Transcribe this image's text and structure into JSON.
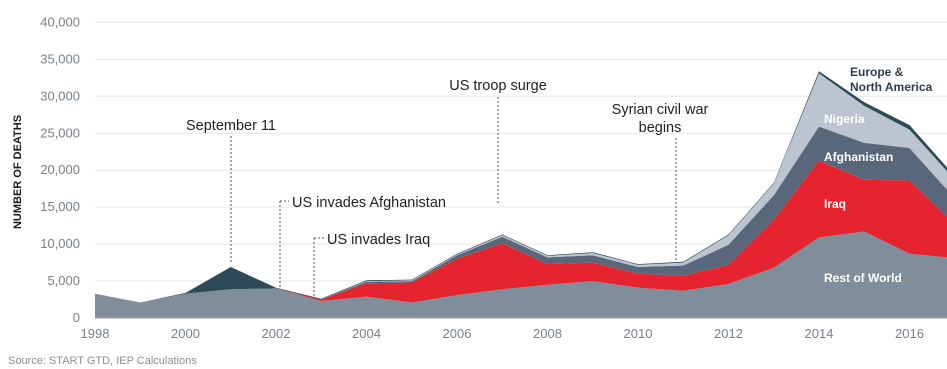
{
  "chart_data": {
    "type": "area",
    "stacked": true,
    "ylabel": "NUMBER OF DEATHS",
    "ylim": [
      0,
      40000
    ],
    "yticks": [
      0,
      5000,
      10000,
      15000,
      20000,
      25000,
      30000,
      35000,
      40000
    ],
    "ytick_labels": [
      "0",
      "5,000",
      "10,000",
      "15,000",
      "20,000",
      "25,000",
      "30,000",
      "35,000",
      "40,000"
    ],
    "xlim": [
      1998,
      2017
    ],
    "xticks": [
      1998,
      2000,
      2002,
      2004,
      2006,
      2008,
      2010,
      2012,
      2014,
      2016
    ],
    "grid": true,
    "x": [
      1998,
      1999,
      2000,
      2001,
      2002,
      2003,
      2004,
      2005,
      2006,
      2007,
      2008,
      2009,
      2010,
      2011,
      2012,
      2013,
      2014,
      2015,
      2016,
      2017
    ],
    "series": [
      {
        "name": "Rest of World",
        "color": "#808e9b",
        "values": [
          3300,
          2100,
          3300,
          3900,
          4000,
          2300,
          2900,
          2100,
          3100,
          3900,
          4500,
          5000,
          4100,
          3700,
          4600,
          6800,
          10900,
          11700,
          8700,
          8100
        ]
      },
      {
        "name": "Iraq",
        "color": "#e5242f",
        "values": [
          0,
          0,
          0,
          0,
          0,
          200,
          1800,
          2700,
          4900,
          6200,
          2800,
          2500,
          1900,
          2000,
          2600,
          6500,
          10400,
          7000,
          9900,
          4600
        ]
      },
      {
        "name": "Afghanistan",
        "color": "#59677a",
        "values": [
          0,
          0,
          0,
          0,
          0,
          0,
          200,
          200,
          500,
          900,
          900,
          1000,
          900,
          1400,
          2700,
          3300,
          4600,
          5000,
          4400,
          3500
        ]
      },
      {
        "name": "Nigeria",
        "color": "#bcc4cf",
        "values": [
          0,
          0,
          0,
          0,
          0,
          0,
          100,
          100,
          100,
          200,
          200,
          300,
          300,
          400,
          1300,
          1600,
          7200,
          5000,
          2500,
          2500
        ]
      },
      {
        "name": "Europe & North America",
        "color": "#2c4a58",
        "values": [
          0,
          0,
          100,
          3000,
          100,
          100,
          100,
          100,
          100,
          100,
          100,
          100,
          100,
          100,
          100,
          100,
          300,
          500,
          600,
          500
        ]
      }
    ],
    "annotations": [
      {
        "text": "September 11",
        "x": 2001
      },
      {
        "text": "US invades Afghanistan",
        "x": 2002
      },
      {
        "text": "US invades Iraq",
        "x": 2003
      },
      {
        "text": "US troop surge",
        "x": 2007
      },
      {
        "text": "Syrian civil war",
        "text2": "begins",
        "x": 2011
      }
    ],
    "inline_labels": [
      {
        "text": "Europe &",
        "text2": "North America"
      },
      {
        "text": "Nigeria"
      },
      {
        "text": "Afghanistan"
      },
      {
        "text": "Iraq"
      },
      {
        "text": "Rest of World"
      }
    ]
  },
  "source": "Source: START GTD, IEP Calculations"
}
